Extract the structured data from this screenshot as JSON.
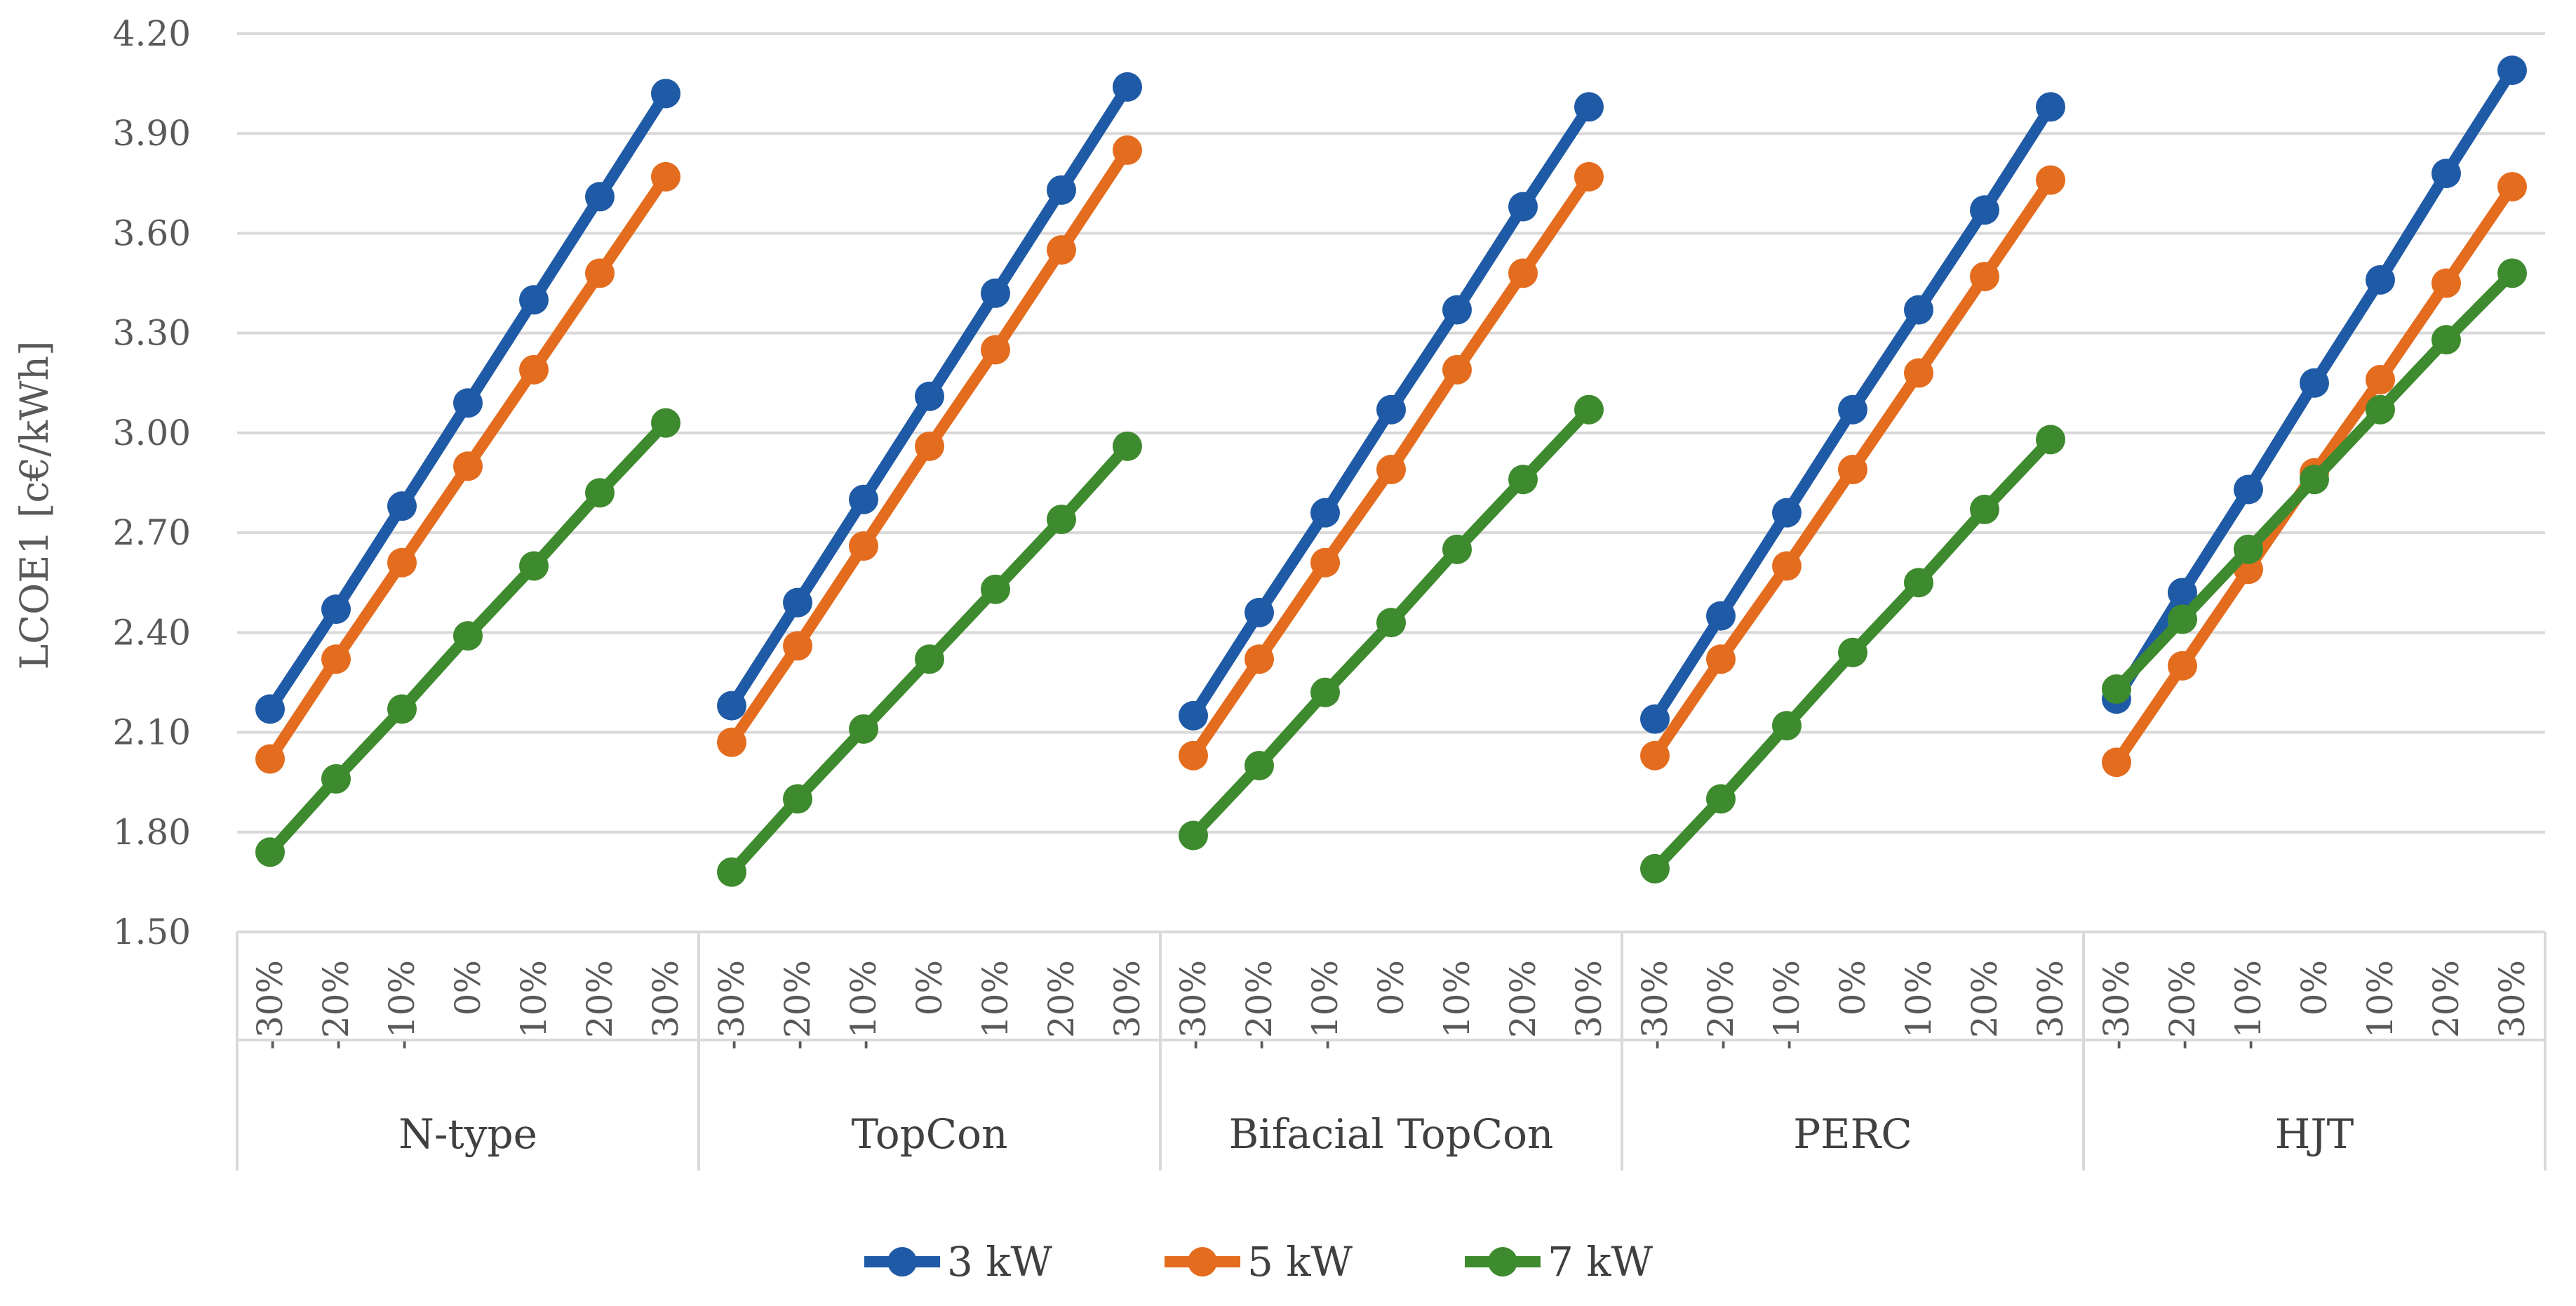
{
  "chart_data": {
    "type": "line",
    "title": "",
    "xlabel": "",
    "ylabel": "LCOE1 [c€/kWh]",
    "ylim": [
      1.5,
      4.2
    ],
    "y_ticks": [
      "1.50",
      "1.80",
      "2.10",
      "2.40",
      "2.70",
      "3.00",
      "3.30",
      "3.60",
      "3.90",
      "4.20"
    ],
    "grid": true,
    "legend_position": "bottom-center",
    "groups": [
      "N-type",
      "TopCon",
      "Bifacial TopCon",
      "PERC",
      "HJT"
    ],
    "categories": [
      "-30%",
      "-20%",
      "-10%",
      "0%",
      "10%",
      "20%",
      "30%"
    ],
    "series": [
      {
        "name": "3 kW",
        "color": "#1F5AA6",
        "values": [
          [
            2.17,
            2.47,
            2.78,
            3.09,
            3.4,
            3.71,
            4.02
          ],
          [
            2.18,
            2.49,
            2.8,
            3.11,
            3.42,
            3.73,
            4.04
          ],
          [
            2.15,
            2.46,
            2.76,
            3.07,
            3.37,
            3.68,
            3.98
          ],
          [
            2.14,
            2.45,
            2.76,
            3.07,
            3.37,
            3.67,
            3.98
          ],
          [
            2.2,
            2.52,
            2.83,
            3.15,
            3.46,
            3.78,
            4.09
          ]
        ]
      },
      {
        "name": "5 kW",
        "color": "#E46C1E",
        "values": [
          [
            2.02,
            2.32,
            2.61,
            2.9,
            3.19,
            3.48,
            3.77
          ],
          [
            2.07,
            2.36,
            2.66,
            2.96,
            3.25,
            3.55,
            3.85
          ],
          [
            2.03,
            2.32,
            2.61,
            2.89,
            3.19,
            3.48,
            3.77
          ],
          [
            2.03,
            2.32,
            2.6,
            2.89,
            3.18,
            3.47,
            3.76
          ],
          [
            2.01,
            2.3,
            2.59,
            2.88,
            3.16,
            3.45,
            3.74
          ]
        ]
      },
      {
        "name": "7 kW",
        "color": "#3E8A2E",
        "values": [
          [
            1.74,
            1.96,
            2.17,
            2.39,
            2.6,
            2.82,
            3.03
          ],
          [
            1.68,
            1.9,
            2.11,
            2.32,
            2.53,
            2.74,
            2.96
          ],
          [
            1.79,
            2.0,
            2.22,
            2.43,
            2.65,
            2.86,
            3.07
          ],
          [
            1.69,
            1.9,
            2.12,
            2.34,
            2.55,
            2.77,
            2.98
          ],
          [
            2.23,
            2.44,
            2.65,
            2.86,
            3.07,
            3.28,
            3.48
          ]
        ]
      }
    ]
  }
}
